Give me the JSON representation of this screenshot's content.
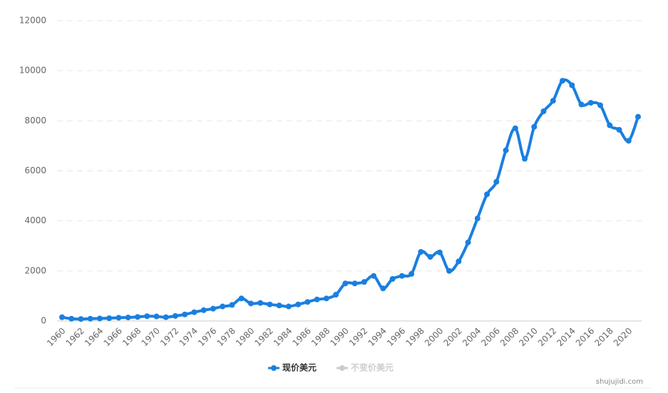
{
  "chart_data": {
    "type": "line",
    "categories": [
      "1960",
      null,
      "1962",
      null,
      "1964",
      null,
      "1966",
      null,
      "1968",
      null,
      "1970",
      null,
      "1972",
      null,
      "1974",
      null,
      "1976",
      null,
      "1978",
      null,
      "1980",
      null,
      "1982",
      null,
      "1984",
      null,
      "1986",
      null,
      "1988",
      null,
      "1990",
      null,
      "1992",
      null,
      "1994",
      null,
      "1996",
      null,
      "1998",
      null,
      "2000",
      null,
      "2002",
      null,
      "2004",
      null,
      "2006",
      null,
      "2008",
      null,
      "2010",
      null,
      "2012",
      null,
      "2014",
      null,
      "2016",
      null,
      "2018",
      null,
      "2020",
      null
    ],
    "series": [
      {
        "name": "现价美元",
        "color": "#1a7fe0",
        "values": [
          150,
          90,
          80,
          90,
          100,
          110,
          130,
          140,
          160,
          190,
          180,
          150,
          200,
          260,
          350,
          430,
          490,
          580,
          640,
          900,
          700,
          720,
          660,
          620,
          580,
          660,
          760,
          860,
          900,
          1050,
          1500,
          1500,
          1560,
          1800,
          1300,
          1680,
          1800,
          1880,
          2760,
          2560,
          2740,
          2000,
          2380,
          3140,
          4100,
          5060,
          5560,
          6820,
          7700,
          6480,
          7760,
          8380,
          8800,
          9600,
          9420,
          8650,
          8720,
          8620,
          7820,
          7640,
          7200,
          8160
        ]
      },
      {
        "name": "不变价美元",
        "color": "#cccccc",
        "values": [
          null,
          null,
          null,
          null,
          null,
          null,
          null,
          null,
          null,
          null,
          null,
          null,
          null,
          null,
          null,
          null,
          null,
          null,
          null,
          null,
          null,
          null,
          null,
          null,
          null,
          null,
          null,
          null,
          null,
          null,
          null,
          null,
          null,
          null,
          null,
          null,
          null,
          null,
          null,
          null,
          null,
          null,
          null,
          null,
          null,
          null,
          null,
          null,
          null,
          null,
          null,
          null,
          null,
          null,
          null,
          null,
          null,
          null,
          null,
          null,
          null,
          null
        ]
      }
    ],
    "ylim": [
      0,
      12000
    ],
    "yticks": [
      0,
      2000,
      4000,
      6000,
      8000,
      10000,
      12000
    ],
    "grid": true,
    "legend": "bottom",
    "watermark": "shujujidi.com"
  }
}
